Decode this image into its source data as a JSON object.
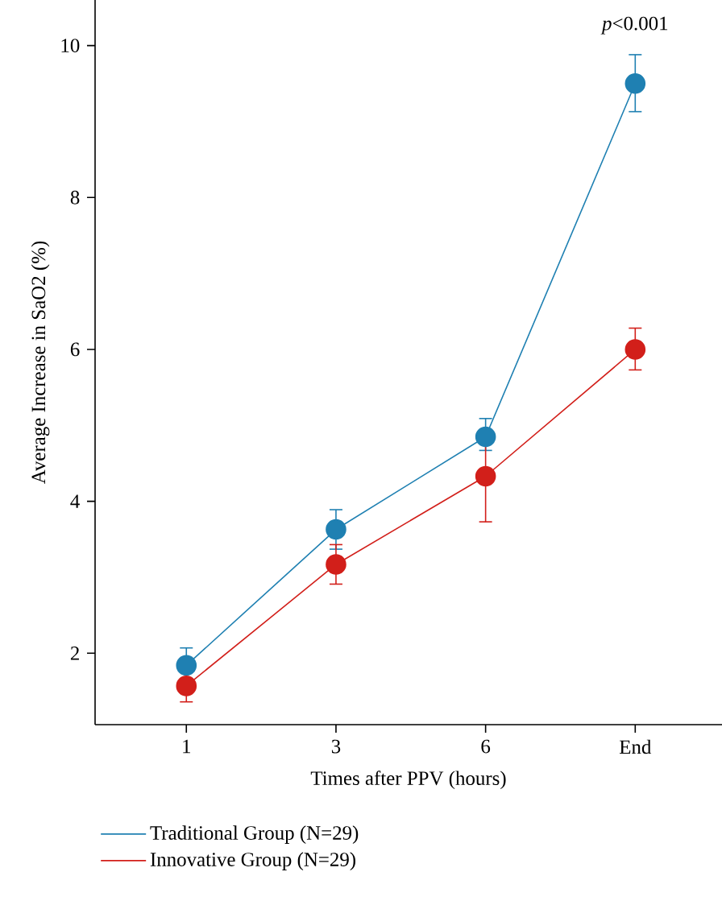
{
  "chart_data": {
    "type": "line",
    "xlabel": "Times after PPV (hours)",
    "ylabel": "Average Increase in SaO2 (%)",
    "categories": [
      "1",
      "3",
      "6",
      "End"
    ],
    "ylim": [
      1.06,
      10.6
    ],
    "yticks": [
      2,
      4,
      6,
      8,
      10
    ],
    "series": [
      {
        "name": "Traditional Group (N=29)",
        "color": "#1f80b2",
        "values": [
          1.84,
          3.63,
          4.85,
          9.5
        ],
        "errors": [
          0.23,
          0.26,
          [
            4.67,
            5.09
          ],
          [
            9.13,
            9.88
          ]
        ]
      },
      {
        "name": "Innovative Group (N=29)",
        "color": "#d21f1a",
        "values": [
          1.57,
          3.17,
          4.33,
          6.0
        ],
        "errors": [
          0.21,
          0.26,
          0.6,
          [
            5.73,
            6.28
          ]
        ]
      }
    ],
    "annotations": [
      "*p*<0.001"
    ],
    "legend": "bottom",
    "marker": "circle",
    "line_style": "solid"
  }
}
